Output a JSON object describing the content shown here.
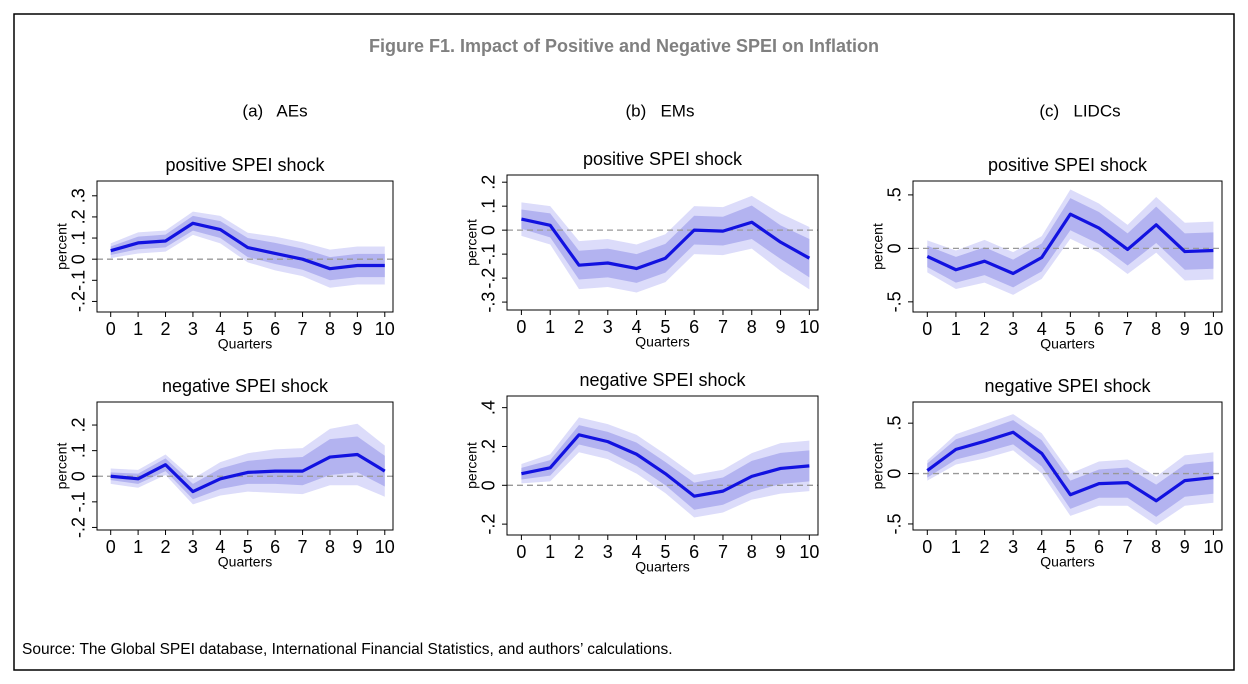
{
  "title": "Figure F1. Impact of Positive and Negative SPEI on Inflation",
  "columns": [
    "(a)   AEs",
    "(b)   EMs",
    "(c)   LIDCs"
  ],
  "source": "Source: The Global SPEI database, International Financial Statistics, and authors’ calculations.",
  "chart_data": [
    {
      "type": "line",
      "title": "positive SPEI shock",
      "x_label": "Quarters",
      "y_label": "percent",
      "x": [
        0,
        1,
        2,
        3,
        4,
        5,
        6,
        7,
        8,
        9,
        10
      ],
      "xlim": [
        -0.5,
        10.3
      ],
      "xticks": [
        0,
        1,
        2,
        3,
        4,
        5,
        6,
        7,
        8,
        9,
        10
      ],
      "ylim": [
        -0.25,
        0.37
      ],
      "yticks": [
        {
          "value": -0.2,
          "label": "-.2"
        },
        {
          "value": -0.1,
          "label": "-.1"
        },
        0,
        {
          "value": 0.1,
          "label": ".1"
        },
        {
          "value": 0.2,
          "label": ".2"
        },
        {
          "value": 0.3,
          "label": ".3"
        }
      ],
      "reference_line": 0,
      "bands": [
        {
          "color": "#dcdcfa",
          "lower": [
            0.005,
            0.027,
            0.036,
            0.115,
            0.075,
            -0.015,
            -0.053,
            -0.08,
            -0.135,
            -0.12,
            -0.12
          ],
          "upper": [
            0.075,
            0.127,
            0.136,
            0.225,
            0.205,
            0.125,
            0.107,
            0.08,
            0.045,
            0.06,
            0.06
          ]
        },
        {
          "color": "#b3b3f0",
          "lower": [
            0.02,
            0.047,
            0.056,
            0.135,
            0.1,
            0.01,
            -0.023,
            -0.05,
            -0.1,
            -0.085,
            -0.085
          ],
          "upper": [
            0.06,
            0.107,
            0.116,
            0.205,
            0.18,
            0.1,
            0.077,
            0.05,
            0.01,
            0.025,
            0.025
          ]
        }
      ],
      "series": [
        {
          "color": "#1212e0",
          "values": [
            0.04,
            0.077,
            0.086,
            0.17,
            0.14,
            0.055,
            0.027,
            0,
            -0.045,
            -0.03,
            -0.03
          ]
        }
      ]
    },
    {
      "type": "line",
      "title": "positive SPEI shock",
      "x_label": "Quarters",
      "y_label": "percent",
      "x": [
        0,
        1,
        2,
        3,
        4,
        5,
        6,
        7,
        8,
        9,
        10
      ],
      "xlim": [
        -0.5,
        10.3
      ],
      "xticks": [
        0,
        1,
        2,
        3,
        4,
        5,
        6,
        7,
        8,
        9,
        10
      ],
      "ylim": [
        -0.333,
        0.23
      ],
      "yticks": [
        {
          "value": -0.3,
          "label": "-.3"
        },
        {
          "value": -0.2,
          "label": "-.2"
        },
        {
          "value": -0.1,
          "label": "-.1"
        },
        0,
        {
          "value": 0.1,
          "label": ".1"
        },
        {
          "value": 0.2,
          "label": ".2"
        }
      ],
      "reference_line": 0,
      "bands": [
        {
          "color": "#dcdcfa",
          "lower": [
            -0.024,
            -0.06,
            -0.246,
            -0.237,
            -0.26,
            -0.217,
            -0.1,
            -0.104,
            -0.077,
            -0.17,
            -0.247
          ],
          "upper": [
            0.116,
            0.1,
            -0.046,
            -0.037,
            -0.06,
            -0.017,
            0.1,
            0.096,
            0.143,
            0.07,
            0.013
          ]
        },
        {
          "color": "#b3b3f0",
          "lower": [
            0.006,
            -0.03,
            -0.206,
            -0.197,
            -0.22,
            -0.177,
            -0.06,
            -0.064,
            -0.037,
            -0.12,
            -0.197
          ],
          "upper": [
            0.086,
            0.07,
            -0.086,
            -0.077,
            -0.1,
            -0.057,
            0.06,
            0.056,
            0.103,
            0.02,
            -0.037
          ]
        }
      ],
      "series": [
        {
          "color": "#1212e0",
          "values": [
            0.046,
            0.02,
            -0.146,
            -0.137,
            -0.16,
            -0.117,
            0,
            -0.004,
            0.033,
            -0.05,
            -0.117
          ]
        }
      ]
    },
    {
      "type": "line",
      "title": "positive SPEI shock",
      "x_label": "Quarters",
      "y_label": "percent",
      "x": [
        0,
        1,
        2,
        3,
        4,
        5,
        6,
        7,
        8,
        9,
        10
      ],
      "xlim": [
        -0.5,
        10.3
      ],
      "xticks": [
        0,
        1,
        2,
        3,
        4,
        5,
        6,
        7,
        8,
        9,
        10
      ],
      "ylim": [
        -0.595,
        0.63
      ],
      "yticks": [
        {
          "value": -0.5,
          "label": "-.5"
        },
        0,
        {
          "value": 0.5,
          "label": ".5"
        }
      ],
      "reference_line": 0,
      "bands": [
        {
          "color": "#dcdcfa",
          "lower": [
            -0.225,
            -0.38,
            -0.32,
            -0.435,
            -0.285,
            0.09,
            -0.04,
            -0.24,
            -0.04,
            -0.3,
            -0.29
          ],
          "upper": [
            0.075,
            -0.02,
            0.08,
            -0.035,
            0.115,
            0.55,
            0.42,
            0.22,
            0.48,
            0.24,
            0.25
          ]
        },
        {
          "color": "#b3b3f0",
          "lower": [
            -0.175,
            -0.32,
            -0.25,
            -0.365,
            -0.215,
            0.17,
            0.04,
            -0.16,
            0.05,
            -0.2,
            -0.19
          ],
          "upper": [
            0.025,
            -0.08,
            0.01,
            -0.105,
            0.045,
            0.47,
            0.34,
            0.14,
            0.39,
            0.14,
            0.15
          ]
        }
      ],
      "series": [
        {
          "color": "#1212e0",
          "values": [
            -0.075,
            -0.2,
            -0.12,
            -0.235,
            -0.085,
            0.32,
            0.19,
            -0.01,
            0.22,
            -0.03,
            -0.02
          ]
        }
      ]
    },
    {
      "type": "line",
      "title": "negative SPEI shock",
      "x_label": "Quarters",
      "y_label": "percent",
      "x": [
        0,
        1,
        2,
        3,
        4,
        5,
        6,
        7,
        8,
        9,
        10
      ],
      "xlim": [
        -0.5,
        10.3
      ],
      "xticks": [
        0,
        1,
        2,
        3,
        4,
        5,
        6,
        7,
        8,
        9,
        10
      ],
      "ylim": [
        -0.21,
        0.29
      ],
      "yticks": [
        {
          "value": -0.2,
          "label": "-.2"
        },
        {
          "value": -0.1,
          "label": "-.1"
        },
        0,
        {
          "value": 0.1,
          "label": ".1"
        },
        {
          "value": 0.2,
          "label": ".2"
        }
      ],
      "reference_line": 0,
      "bands": [
        {
          "color": "#dcdcfa",
          "lower": [
            -0.03,
            -0.045,
            0.005,
            -0.11,
            -0.075,
            -0.06,
            -0.065,
            -0.07,
            -0.035,
            -0.035,
            -0.08
          ],
          "upper": [
            0.03,
            0.025,
            0.085,
            -0.01,
            0.055,
            0.09,
            0.105,
            0.11,
            0.185,
            0.205,
            0.12
          ]
        },
        {
          "color": "#b3b3f0",
          "lower": [
            -0.015,
            -0.03,
            0.02,
            -0.09,
            -0.05,
            -0.03,
            -0.03,
            -0.035,
            0.005,
            0.015,
            -0.04
          ],
          "upper": [
            0.015,
            0.01,
            0.07,
            -0.03,
            0.03,
            0.06,
            0.07,
            0.075,
            0.145,
            0.155,
            0.08
          ]
        }
      ],
      "series": [
        {
          "color": "#1212e0",
          "values": [
            0,
            -0.01,
            0.045,
            -0.06,
            -0.01,
            0.015,
            0.02,
            0.02,
            0.075,
            0.085,
            0.02
          ]
        }
      ]
    },
    {
      "type": "line",
      "title": "negative SPEI shock",
      "x_label": "Quarters",
      "y_label": "percent",
      "x": [
        0,
        1,
        2,
        3,
        4,
        5,
        6,
        7,
        8,
        9,
        10
      ],
      "xlim": [
        -0.5,
        10.3
      ],
      "xticks": [
        0,
        1,
        2,
        3,
        4,
        5,
        6,
        7,
        8,
        9,
        10
      ],
      "ylim": [
        -0.256,
        0.46
      ],
      "yticks": [
        {
          "value": -0.2,
          "label": "-.2"
        },
        0,
        {
          "value": 0.2,
          "label": ".2"
        },
        {
          "value": 0.4,
          "label": ".4"
        }
      ],
      "reference_line": 0,
      "bands": [
        {
          "color": "#dcdcfa",
          "lower": [
            0.01,
            0.02,
            0.17,
            0.135,
            0.06,
            -0.04,
            -0.166,
            -0.14,
            -0.074,
            -0.043,
            -0.03
          ],
          "upper": [
            0.11,
            0.16,
            0.35,
            0.315,
            0.26,
            0.16,
            0.054,
            0.08,
            0.166,
            0.217,
            0.23
          ]
        },
        {
          "color": "#b3b3f0",
          "lower": [
            0.03,
            0.05,
            0.21,
            0.175,
            0.1,
            0,
            -0.126,
            -0.1,
            -0.034,
            0.007,
            0.02
          ],
          "upper": [
            0.09,
            0.13,
            0.31,
            0.275,
            0.22,
            0.12,
            0.014,
            0.04,
            0.126,
            0.167,
            0.18
          ]
        }
      ],
      "series": [
        {
          "color": "#1212e0",
          "values": [
            0.06,
            0.09,
            0.26,
            0.225,
            0.16,
            0.06,
            -0.056,
            -0.03,
            0.046,
            0.087,
            0.1
          ]
        }
      ]
    },
    {
      "type": "line",
      "title": "negative SPEI shock",
      "x_label": "Quarters",
      "y_label": "percent",
      "x": [
        0,
        1,
        2,
        3,
        4,
        5,
        6,
        7,
        8,
        9,
        10
      ],
      "xlim": [
        -0.5,
        10.3
      ],
      "xticks": [
        0,
        1,
        2,
        3,
        4,
        5,
        6,
        7,
        8,
        9,
        10
      ],
      "ylim": [
        -0.56,
        0.71
      ],
      "yticks": [
        {
          "value": -0.5,
          "label": "-.5"
        },
        0,
        {
          "value": 0.5,
          "label": ".5"
        }
      ],
      "reference_line": 0,
      "bands": [
        {
          "color": "#dcdcfa",
          "lower": [
            -0.07,
            0.09,
            0.15,
            0.23,
            0,
            -0.42,
            -0.32,
            -0.32,
            -0.51,
            -0.32,
            -0.29
          ],
          "upper": [
            0.13,
            0.39,
            0.49,
            0.59,
            0.4,
            0,
            0.12,
            0.14,
            -0.03,
            0.18,
            0.21
          ]
        },
        {
          "color": "#b3b3f0",
          "lower": [
            -0.04,
            0.14,
            0.21,
            0.29,
            0.07,
            -0.35,
            -0.24,
            -0.24,
            -0.43,
            -0.23,
            -0.2
          ],
          "upper": [
            0.1,
            0.34,
            0.43,
            0.53,
            0.33,
            -0.07,
            0.04,
            0.06,
            -0.11,
            0.09,
            0.12
          ]
        }
      ],
      "series": [
        {
          "color": "#1212e0",
          "values": [
            0.03,
            0.24,
            0.32,
            0.41,
            0.2,
            -0.21,
            -0.1,
            -0.09,
            -0.27,
            -0.07,
            -0.04
          ]
        }
      ]
    }
  ]
}
